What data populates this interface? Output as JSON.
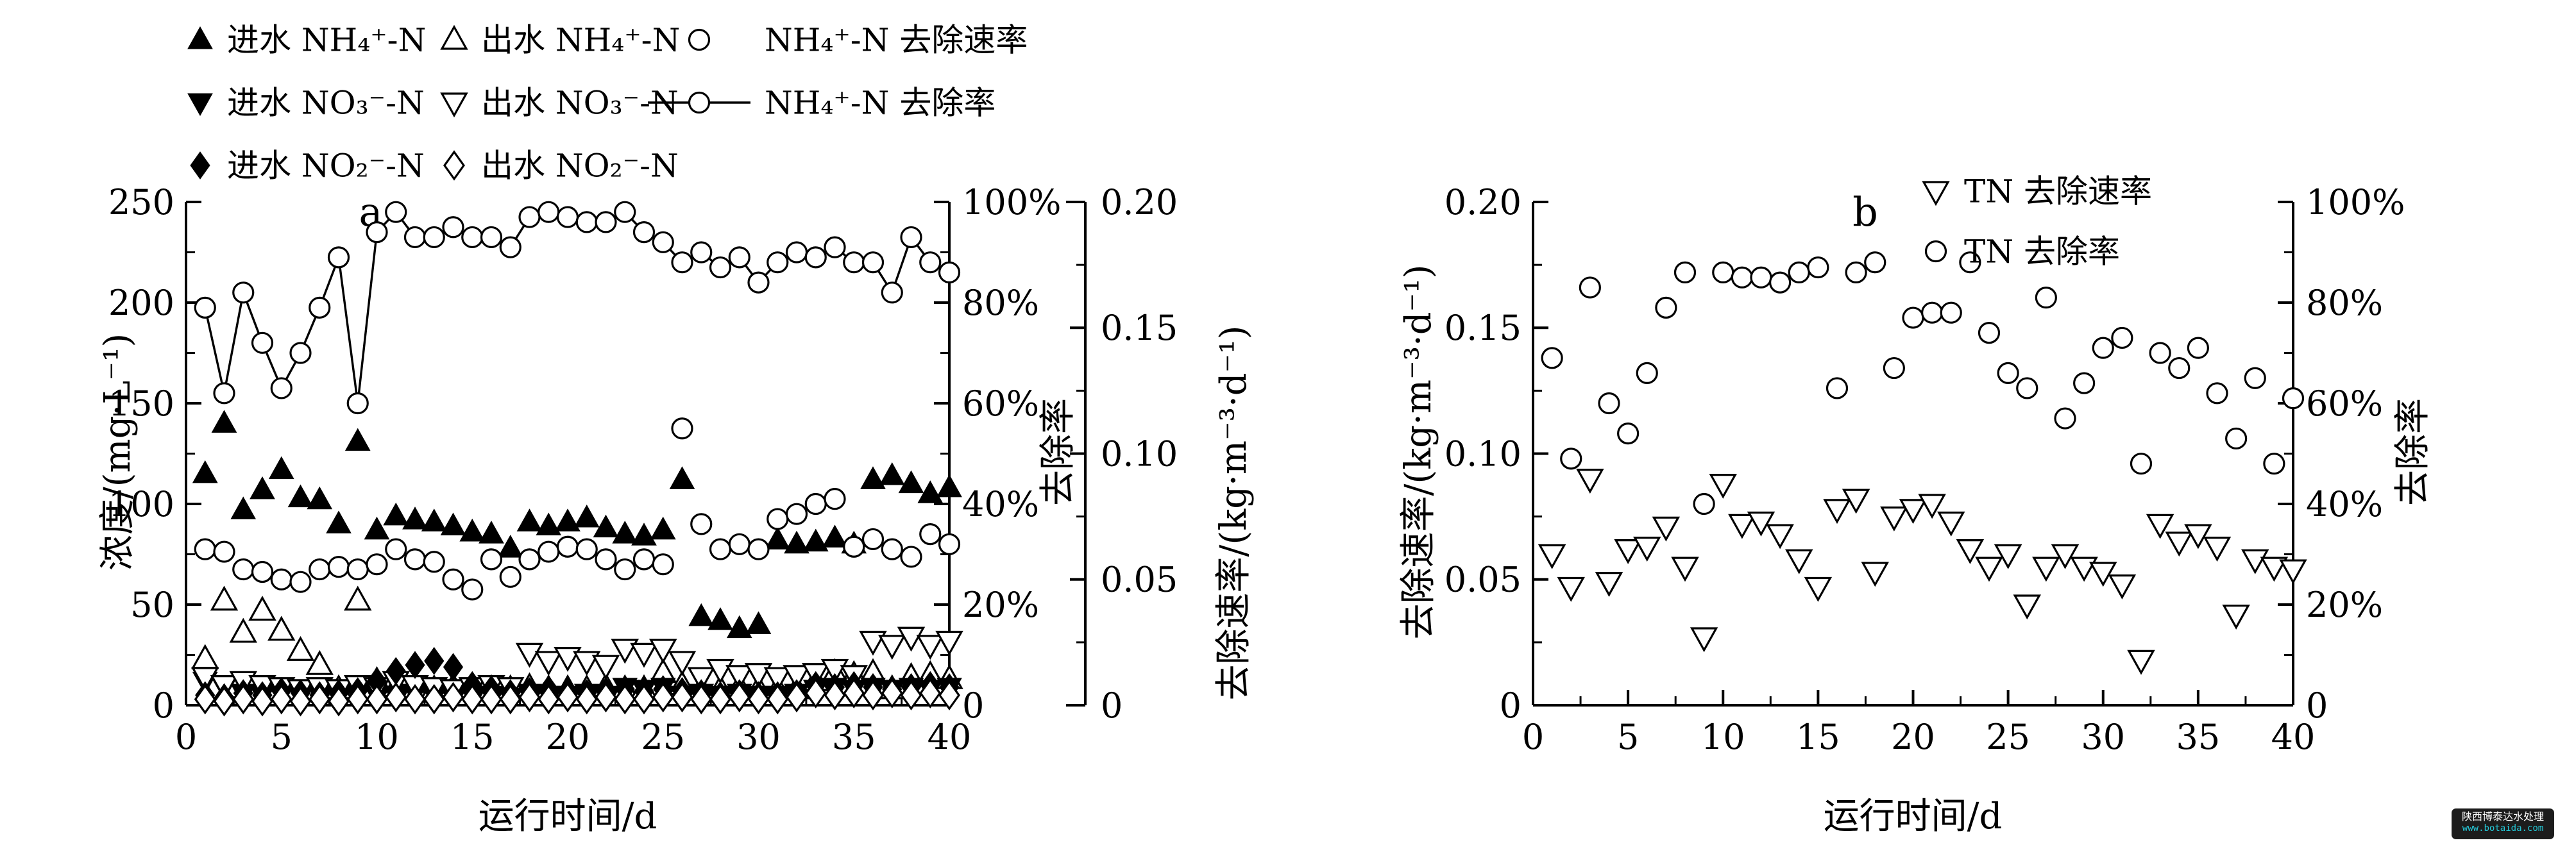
{
  "watermark": {
    "line1": "陕西博泰达水处理",
    "line2": "www.botaida.com",
    "bg_color": "#1c1c1c",
    "line1_color": "#ffffff",
    "line2_color": "#25c7d6"
  },
  "chart_data": [
    {
      "id": "a",
      "type": "scatter",
      "panel_label": "a",
      "xlabel": "运行时间/d",
      "x_range": [
        0,
        40
      ],
      "x_ticks": [
        0,
        5,
        10,
        15,
        20,
        25,
        30,
        35,
        40
      ],
      "x_minor_step": 2.5,
      "grid": false,
      "left_axis": {
        "label": "浓度/(mg·L⁻¹)",
        "range": [
          0,
          250
        ],
        "ticks": [
          0,
          50,
          100,
          150,
          200,
          250
        ],
        "minor_step": 25
      },
      "percent_axis": {
        "label": "去除率",
        "range": [
          0,
          100
        ],
        "tick_values": [
          0,
          20,
          40,
          60,
          80,
          100
        ],
        "tick_labels": [
          "0",
          "20%",
          "40%",
          "60%",
          "80%",
          "100%"
        ],
        "minor_step": 10
      },
      "rate_axis": {
        "label": "去除速率/(kg·m⁻³·d⁻¹)",
        "range": [
          0,
          0.2
        ],
        "tick_values": [
          0,
          0.05,
          0.1,
          0.15,
          0.2
        ],
        "tick_labels": [
          "0",
          "0.05",
          "0.10",
          "0.15",
          "0.20"
        ],
        "minor_step": 0.025
      },
      "legend": [
        {
          "marker": "triangle-up",
          "fill": "filled",
          "label": "进水 NH₄⁺-N"
        },
        {
          "marker": "triangle-down",
          "fill": "filled",
          "label": "进水 NO₃⁻-N"
        },
        {
          "marker": "diamond",
          "fill": "filled",
          "label": "进水 NO₂⁻-N"
        },
        {
          "marker": "triangle-up",
          "fill": "open",
          "label": "出水 NH₄⁺-N"
        },
        {
          "marker": "triangle-down",
          "fill": "open",
          "label": "出水 NO₃⁻-N"
        },
        {
          "marker": "diamond",
          "fill": "open",
          "label": "出水 NO₂⁻-N"
        },
        {
          "marker": "circle",
          "fill": "open",
          "label": "NH₄⁺-N 去除速率"
        },
        {
          "marker": "circle-line",
          "fill": "open",
          "label": "NH₄⁺-N 去除率"
        }
      ],
      "days": [
        1,
        2,
        3,
        4,
        5,
        6,
        7,
        8,
        9,
        10,
        11,
        12,
        13,
        14,
        15,
        16,
        17,
        18,
        19,
        20,
        21,
        22,
        23,
        24,
        25,
        26,
        27,
        28,
        29,
        30,
        31,
        32,
        33,
        34,
        35,
        36,
        37,
        38,
        39,
        40
      ],
      "series": [
        {
          "name": "进水 NH₄⁺-N",
          "marker": "triangle-up",
          "fill": "filled",
          "axis": "left",
          "unit": "mg·L⁻¹",
          "values": [
            115,
            140,
            97,
            107,
            117,
            103,
            102,
            90,
            131,
            87,
            94,
            92,
            91,
            89,
            86,
            85,
            78,
            91,
            89,
            91,
            93,
            88,
            85,
            84,
            87,
            112,
            44,
            42,
            38,
            40,
            82,
            80,
            81,
            83,
            80,
            112,
            114,
            110,
            105,
            108
          ]
        },
        {
          "name": "出水 NH₄⁺-N",
          "marker": "triangle-up",
          "fill": "open",
          "axis": "left",
          "unit": "mg·L⁻¹",
          "values": [
            23,
            52,
            36,
            47,
            37,
            27,
            20,
            8,
            52,
            12,
            9,
            8,
            8,
            9,
            8,
            8,
            8,
            9,
            8,
            8,
            8,
            9,
            8,
            8,
            16,
            10,
            8,
            8,
            9,
            8,
            8,
            8,
            12,
            16,
            15,
            16,
            8,
            14,
            15,
            13
          ]
        },
        {
          "name": "进水 NO₃⁻-N",
          "marker": "triangle-down",
          "fill": "filled",
          "axis": "left",
          "unit": "mg·L⁻¹",
          "values": [
            12,
            9,
            6,
            5,
            6,
            5,
            5,
            4,
            6,
            5,
            5,
            6,
            5,
            4,
            5,
            5,
            4,
            6,
            5,
            5,
            6,
            5,
            9,
            8,
            9,
            5,
            6,
            5,
            6,
            5,
            5,
            6,
            8,
            9,
            8,
            9,
            8,
            9,
            8,
            9
          ]
        },
        {
          "name": "出水 NO₃⁻-N",
          "marker": "triangle-down",
          "fill": "open",
          "axis": "left",
          "unit": "mg·L⁻¹",
          "values": [
            14,
            10,
            12,
            10,
            9,
            8,
            9,
            8,
            10,
            9,
            12,
            10,
            9,
            8,
            9,
            10,
            9,
            26,
            22,
            24,
            22,
            20,
            28,
            26,
            28,
            22,
            14,
            18,
            15,
            16,
            14,
            15,
            16,
            18,
            15,
            32,
            30,
            34,
            30,
            32
          ]
        },
        {
          "name": "进水 NO₂⁻-N",
          "marker": "diamond",
          "fill": "filled",
          "axis": "left",
          "unit": "mg·L⁻¹",
          "values": [
            5,
            4,
            6,
            5,
            7,
            6,
            5,
            6,
            7,
            12,
            17,
            20,
            22,
            19,
            10,
            8,
            6,
            7,
            8,
            7,
            6,
            7,
            8,
            7,
            8,
            7,
            6,
            5,
            6,
            5,
            5,
            6,
            10,
            9,
            10,
            9,
            8,
            9,
            10,
            9
          ]
        },
        {
          "name": "出水 NO₂⁻-N",
          "marker": "diamond",
          "fill": "open",
          "axis": "left",
          "unit": "mg·L⁻¹",
          "values": [
            3,
            2,
            3,
            2,
            3,
            2,
            3,
            2,
            3,
            3,
            4,
            3,
            3,
            4,
            3,
            3,
            3,
            4,
            3,
            4,
            3,
            4,
            3,
            3,
            4,
            4,
            3,
            3,
            4,
            3,
            3,
            4,
            6,
            5,
            6,
            5,
            6,
            5,
            6,
            5
          ]
        },
        {
          "name": "NH₄⁺-N 去除速率",
          "marker": "circle",
          "fill": "open",
          "axis": "rate",
          "unit": "kg·m⁻³·d⁻¹",
          "values": [
            0.062,
            0.061,
            0.054,
            0.053,
            0.05,
            0.049,
            0.054,
            0.055,
            0.054,
            0.056,
            0.062,
            0.058,
            0.057,
            0.05,
            0.046,
            0.058,
            0.051,
            0.058,
            0.061,
            0.063,
            0.062,
            0.058,
            0.054,
            0.058,
            0.056,
            0.11,
            0.072,
            0.062,
            0.064,
            0.062,
            0.074,
            0.076,
            0.08,
            0.082,
            0.063,
            0.066,
            0.062,
            0.059,
            0.068,
            0.064
          ]
        },
        {
          "name": "NH₄⁺-N 去除率",
          "marker": "circle",
          "fill": "open",
          "axis": "percent",
          "line": true,
          "unit": "%",
          "values": [
            79,
            62,
            82,
            72,
            63,
            70,
            79,
            89,
            60,
            94,
            98,
            93,
            93,
            95,
            93,
            93,
            91,
            97,
            98,
            97,
            96,
            96,
            98,
            94,
            92,
            88,
            90,
            87,
            89,
            84,
            88,
            90,
            89,
            91,
            88,
            88,
            82,
            93,
            88,
            86
          ]
        }
      ]
    },
    {
      "id": "b",
      "type": "scatter",
      "panel_label": "b",
      "xlabel": "运行时间/d",
      "x_range": [
        0,
        40
      ],
      "x_ticks": [
        0,
        5,
        10,
        15,
        20,
        25,
        30,
        35,
        40
      ],
      "x_minor_step": 2.5,
      "grid": false,
      "left_axis": {
        "label": "去除速率/(kg·m⁻³·d⁻¹)",
        "range": [
          0,
          0.2
        ],
        "tick_values": [
          0,
          0.05,
          0.1,
          0.15,
          0.2
        ],
        "tick_labels": [
          "0",
          "0.05",
          "0.10",
          "0.15",
          "0.20"
        ],
        "minor_step": 0.025
      },
      "percent_axis": {
        "label": "去除率",
        "range": [
          0,
          100
        ],
        "tick_values": [
          0,
          20,
          40,
          60,
          80,
          100
        ],
        "tick_labels": [
          "0",
          "20%",
          "40%",
          "60%",
          "80%",
          "100%"
        ],
        "minor_step": 10
      },
      "legend": [
        {
          "marker": "triangle-down",
          "fill": "open",
          "label": "TN 去除速率"
        },
        {
          "marker": "circle",
          "fill": "open",
          "label": "TN 去除率"
        }
      ],
      "days": [
        1,
        2,
        3,
        4,
        5,
        6,
        7,
        8,
        9,
        10,
        11,
        12,
        13,
        14,
        15,
        16,
        17,
        18,
        19,
        20,
        21,
        22,
        23,
        24,
        25,
        26,
        27,
        28,
        29,
        30,
        31,
        32,
        33,
        34,
        35,
        36,
        37,
        38,
        39,
        40
      ],
      "series": [
        {
          "name": "TN 去除速率",
          "marker": "triangle-down",
          "fill": "open",
          "axis": "left",
          "unit": "kg·m⁻³·d⁻¹",
          "values": [
            0.06,
            0.047,
            0.09,
            0.049,
            0.062,
            0.063,
            0.071,
            0.055,
            0.027,
            0.088,
            0.072,
            0.073,
            0.068,
            0.058,
            0.047,
            0.078,
            0.082,
            0.053,
            0.075,
            0.078,
            0.08,
            0.073,
            0.062,
            0.055,
            0.06,
            0.04,
            0.055,
            0.06,
            0.055,
            0.053,
            0.048,
            0.018,
            0.072,
            0.065,
            0.068,
            0.063,
            0.036,
            0.058,
            0.055,
            0.054
          ]
        },
        {
          "name": "TN 去除率",
          "marker": "circle",
          "fill": "open",
          "axis": "percent",
          "unit": "%",
          "values": [
            69,
            49,
            83,
            60,
            54,
            66,
            79,
            86,
            40,
            86,
            85,
            85,
            84,
            86,
            87,
            63,
            86,
            88,
            67,
            77,
            78,
            78,
            88,
            74,
            66,
            63,
            81,
            57,
            64,
            71,
            73,
            48,
            70,
            67,
            71,
            62,
            53,
            65,
            48,
            61
          ]
        }
      ]
    }
  ]
}
